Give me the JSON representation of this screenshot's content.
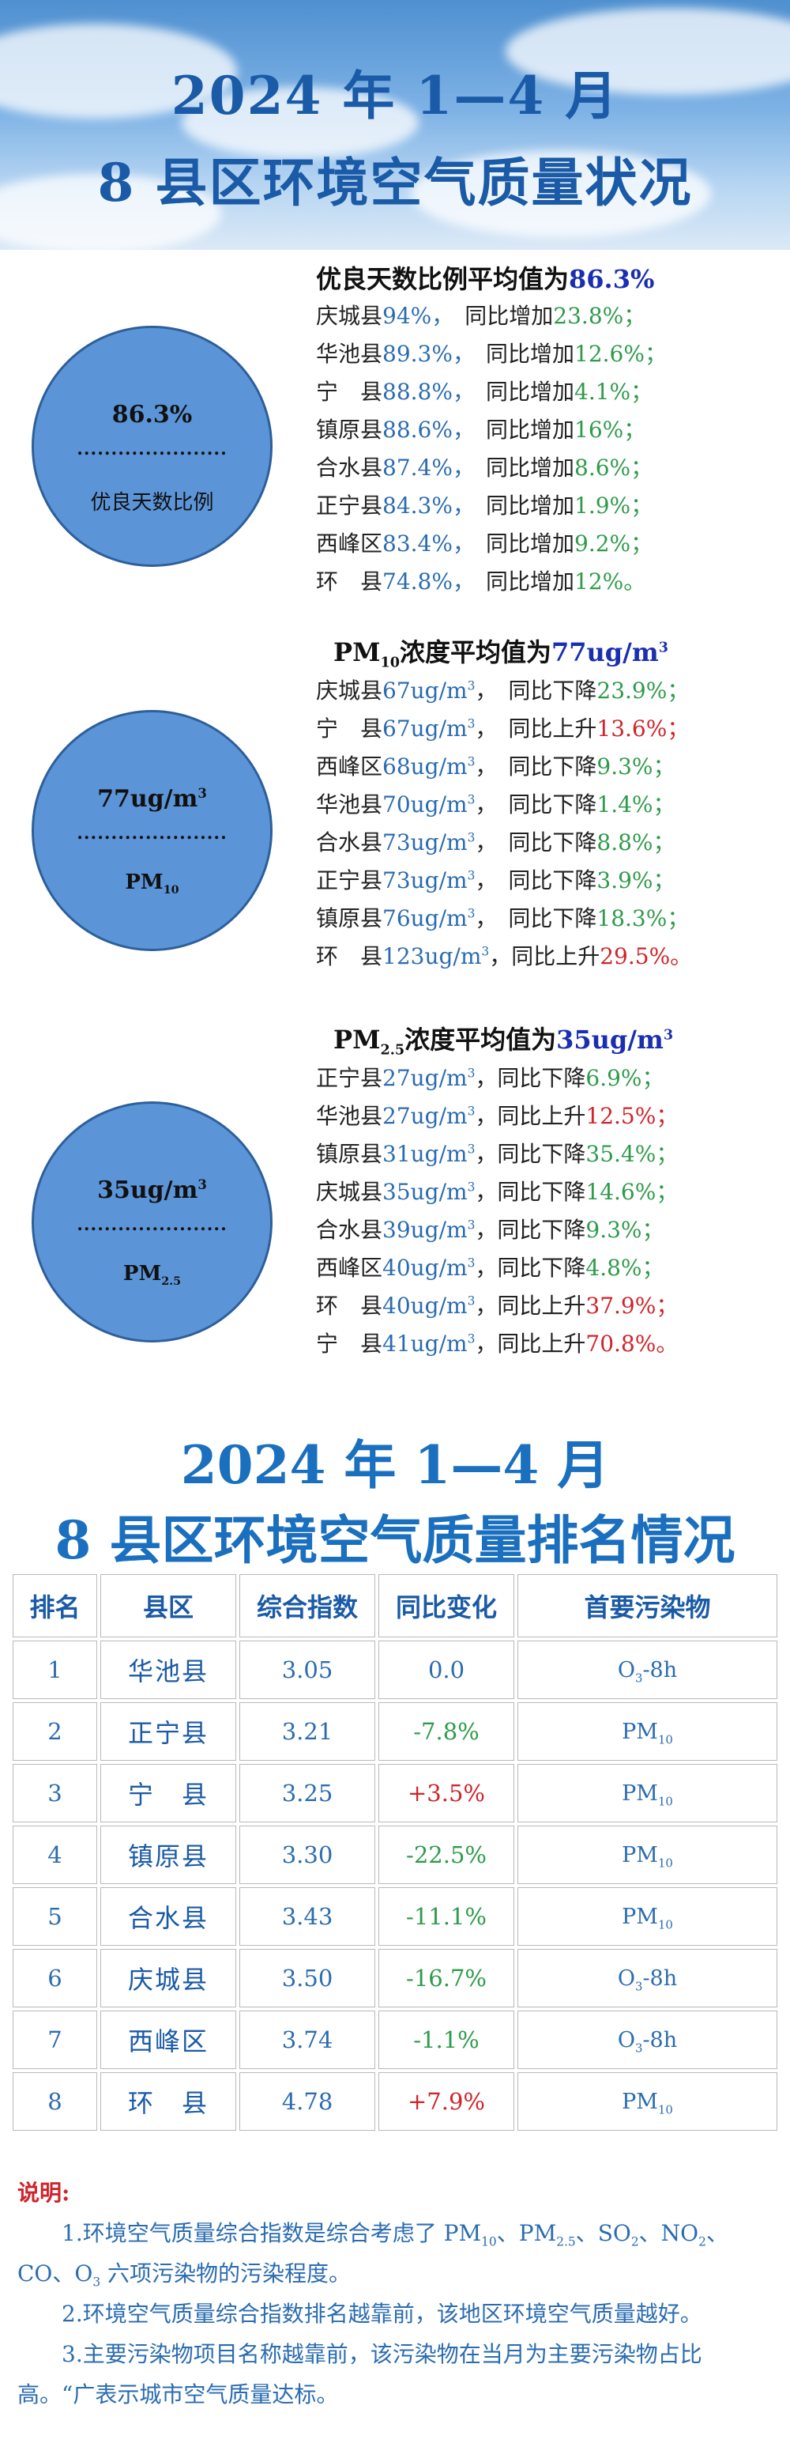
{
  "header": {
    "line1": "2024 年 1—4 月",
    "line2": "8 县区环境空气质量状况"
  },
  "good_days": {
    "circle_value": "86.3%",
    "circle_dots": "......................",
    "circle_label": "优良天数比例",
    "title_prefix": "优良天数比例平均值为",
    "title_value": "86.3%",
    "rows": [
      {
        "city": "庆城县",
        "value": "94%，",
        "tail": "同比增加",
        "change": "23.8%；",
        "dir": "up"
      },
      {
        "city": "华池县",
        "value": "89.3%，",
        "tail": "同比增加",
        "change": "12.6%；",
        "dir": "up"
      },
      {
        "city": "宁　县",
        "value": "88.8%，",
        "tail": "同比增加",
        "change": "4.1%；",
        "dir": "up"
      },
      {
        "city": "镇原县",
        "value": "88.6%，",
        "tail": "同比增加",
        "change": "16%；",
        "dir": "up"
      },
      {
        "city": "合水县",
        "value": "87.4%，",
        "tail": "同比增加",
        "change": "8.6%；",
        "dir": "up"
      },
      {
        "city": "正宁县",
        "value": "84.3%，",
        "tail": "同比增加",
        "change": "1.9%；",
        "dir": "up"
      },
      {
        "city": "西峰区",
        "value": "83.4%，",
        "tail": "同比增加",
        "change": "9.2%；",
        "dir": "up"
      },
      {
        "city": "环　县",
        "value": "74.8%，",
        "tail": "同比增加",
        "change": "12%。",
        "dir": "up"
      }
    ]
  },
  "pm10": {
    "circle_value": "77ug/m",
    "circle_dots": "......................",
    "circle_label": "PM",
    "circle_sub": "10",
    "title_prefix": "PM",
    "title_sub": "10",
    "title_mid": "浓度平均值为",
    "title_value": "77ug/m",
    "rows": [
      {
        "city": "庆城县",
        "value": "67ug/m",
        "tail": "，　同比下降",
        "change": "23.9%；",
        "color": "g"
      },
      {
        "city": "宁　县",
        "value": "67ug/m",
        "tail": "，　同比上升",
        "change": "13.6%；",
        "color": "r"
      },
      {
        "city": "西峰区",
        "value": "68ug/m",
        "tail": "，　同比下降",
        "change": "9.3%；",
        "color": "g"
      },
      {
        "city": "华池县",
        "value": "70ug/m",
        "tail": "，　同比下降",
        "change": "1.4%；",
        "color": "g"
      },
      {
        "city": "合水县",
        "value": "73ug/m",
        "tail": "，　同比下降",
        "change": "8.8%；",
        "color": "g"
      },
      {
        "city": "正宁县",
        "value": "73ug/m",
        "tail": "，　同比下降",
        "change": "3.9%；",
        "color": "g"
      },
      {
        "city": "镇原县",
        "value": "76ug/m",
        "tail": "，　同比下降",
        "change": "18.3%；",
        "color": "g"
      },
      {
        "city": "环　县",
        "value": "123ug/m",
        "tail": "，同比上升",
        "change": "29.5%。",
        "color": "r"
      }
    ]
  },
  "pm25": {
    "circle_value": "35ug/m",
    "circle_dots": "......................",
    "circle_label": "PM",
    "circle_sub": "2.5",
    "title_prefix": "PM",
    "title_sub": "2.5",
    "title_mid": "浓度平均值为",
    "title_value": "35ug/m",
    "rows": [
      {
        "city": "正宁县",
        "value": "27ug/m",
        "tail": "，同比下降",
        "change": "6.9%；",
        "color": "g"
      },
      {
        "city": "华池县",
        "value": "27ug/m",
        "tail": "，同比上升",
        "change": "12.5%；",
        "color": "r"
      },
      {
        "city": "镇原县",
        "value": "31ug/m",
        "tail": "，同比下降",
        "change": "35.4%；",
        "color": "g"
      },
      {
        "city": "庆城县",
        "value": "35ug/m",
        "tail": "，同比下降",
        "change": "14.6%；",
        "color": "g"
      },
      {
        "city": "合水县",
        "value": "39ug/m",
        "tail": "，同比下降",
        "change": "9.3%；",
        "color": "g"
      },
      {
        "city": "西峰区",
        "value": "40ug/m",
        "tail": "，同比下降",
        "change": "4.8%；",
        "color": "g"
      },
      {
        "city": "环　县",
        "value": "40ug/m",
        "tail": "，同比上升",
        "change": "37.9%；",
        "color": "r"
      },
      {
        "city": "宁　县",
        "value": "41ug/m",
        "tail": "，同比上升",
        "change": "70.8%。",
        "color": "r"
      }
    ]
  },
  "superscript_3": "3",
  "ranking": {
    "line1": "2024 年 1—4 月",
    "line2": "8 县区环境空气质量排名情况",
    "headers": [
      "排名",
      "县区",
      "综合指数",
      "同比变化",
      "首要污染物"
    ],
    "rows": [
      {
        "rank": "1",
        "city": "华池县",
        "index": "3.05",
        "change": "0.0",
        "color": "n",
        "pollutant": "O",
        "pol_sub": "3",
        "pol_tail": "-8h"
      },
      {
        "rank": "2",
        "city": "正宁县",
        "index": "3.21",
        "change": "-7.8%",
        "color": "g",
        "pollutant": "PM",
        "pol_sub": "10",
        "pol_tail": ""
      },
      {
        "rank": "3",
        "city": "宁　县",
        "index": "3.25",
        "change": "+3.5%",
        "color": "r",
        "pollutant": "PM",
        "pol_sub": "10",
        "pol_tail": ""
      },
      {
        "rank": "4",
        "city": "镇原县",
        "index": "3.30",
        "change": "-22.5%",
        "color": "g",
        "pollutant": "PM",
        "pol_sub": "10",
        "pol_tail": ""
      },
      {
        "rank": "5",
        "city": "合水县",
        "index": "3.43",
        "change": "-11.1%",
        "color": "g",
        "pollutant": "PM",
        "pol_sub": "10",
        "pol_tail": ""
      },
      {
        "rank": "6",
        "city": "庆城县",
        "index": "3.50",
        "change": "-16.7%",
        "color": "g",
        "pollutant": "O",
        "pol_sub": "3",
        "pol_tail": "-8h"
      },
      {
        "rank": "7",
        "city": "西峰区",
        "index": "3.74",
        "change": "-1.1%",
        "color": "g",
        "pollutant": "O",
        "pol_sub": "3",
        "pol_tail": "-8h"
      },
      {
        "rank": "8",
        "city": "环　县",
        "index": "4.78",
        "change": "+7.9%",
        "color": "r",
        "pollutant": "PM",
        "pol_sub": "10",
        "pol_tail": ""
      }
    ]
  },
  "notes": {
    "head": "说明:",
    "n1_a": "1.环境空气质量综合指数是综合考虑了 PM",
    "n1_s1": "10",
    "n1_b": "、PM",
    "n1_s2": "2.5",
    "n1_c": "、SO",
    "n1_s3": "2",
    "n1_d": "、NO",
    "n1_s4": "2",
    "n1_e": "、CO、O",
    "n1_s5": "3",
    "n1_f": " 六项污染物的污染程度。",
    "n2": "2.环境空气质量综合指数排名越靠前，该地区环境空气质量越好。",
    "n3": "3.主要污染物项目名称越靠前，该污染物在当月为主要污染物占比高。“广表示城市空气质量达标。"
  },
  "colors": {
    "title_blue": "#1a5aa6",
    "value_blue": "#2b6cb0",
    "green": "#2e9b4a",
    "red": "#d0232a",
    "circle": "#5b95d8"
  }
}
